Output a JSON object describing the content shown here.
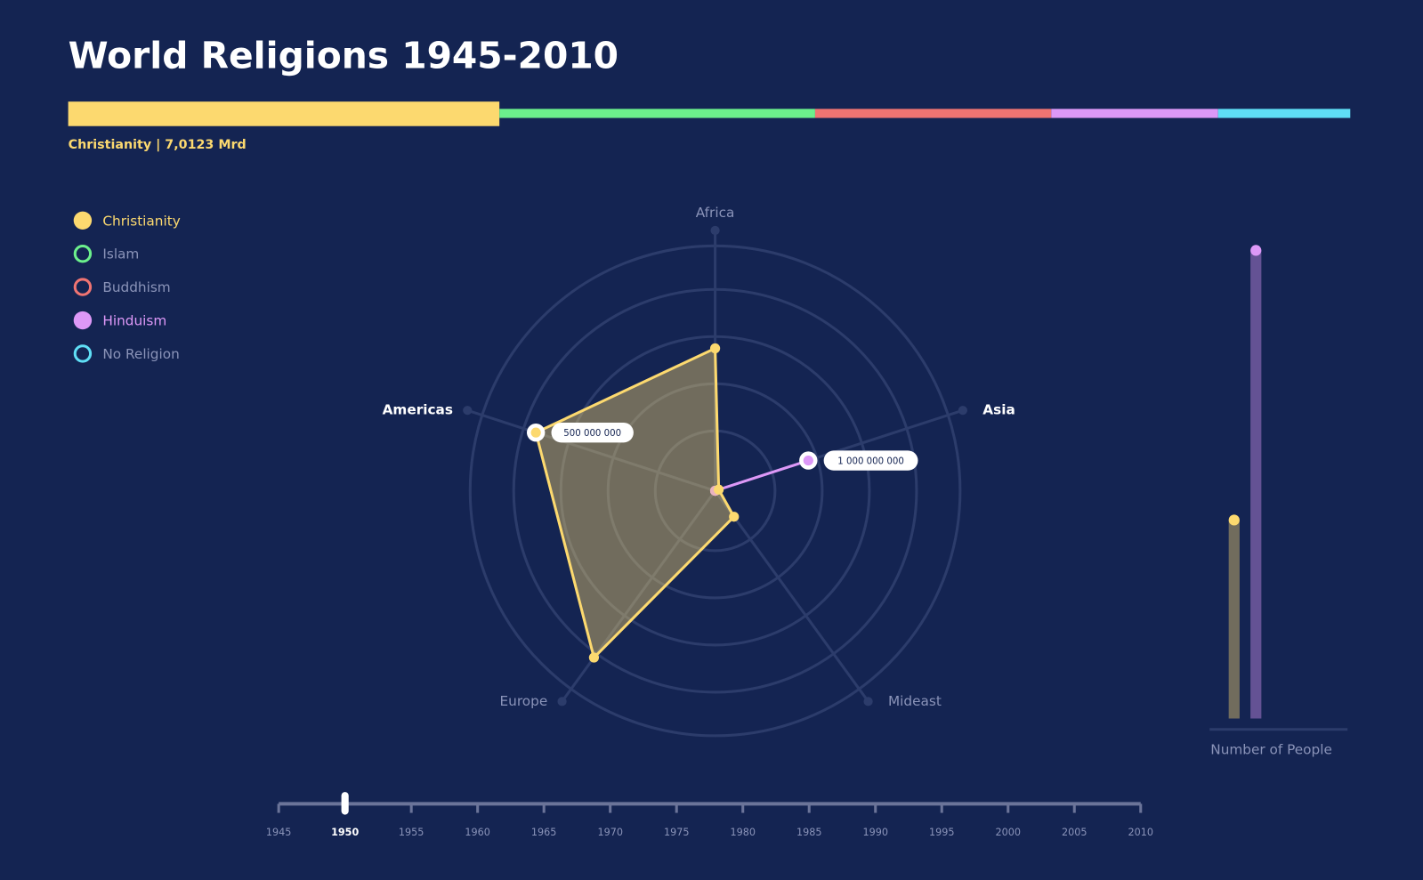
{
  "title": "World Religions 1945-2010",
  "share_bar": {
    "label": "Christianity | 7,0123 Mrd",
    "values": [
      33.6,
      24.6,
      18.4,
      13.0,
      10.3
    ],
    "selected": 0
  },
  "legend": [
    {
      "name": "Christianity",
      "color": "#fcd96f",
      "active": true
    },
    {
      "name": "Islam",
      "color": "#6cf08c",
      "active": false
    },
    {
      "name": "Buddhism",
      "color": "#f07472",
      "active": false
    },
    {
      "name": "Hinduism",
      "color": "#dd98f7",
      "active": true
    },
    {
      "name": "No Religion",
      "color": "#5fdef5",
      "active": false
    }
  ],
  "chart_data": [
    {
      "type": "radar",
      "categories": [
        "Africa",
        "Asia",
        "Mideast",
        "Europe",
        "Americas"
      ],
      "series": [
        {
          "name": "Christianity",
          "color": "#fcd96f",
          "rlim": [
            0,
            650000000
          ],
          "values": [
            378000000,
            10000000,
            85000000,
            547000000,
            500000000
          ],
          "value_labels": [
            null,
            null,
            null,
            null,
            "500 000 000"
          ]
        },
        {
          "name": "Hinduism",
          "color": "#dd98f7",
          "rlim": [
            0,
            2500000000
          ],
          "values": [
            0,
            1000000000,
            0,
            0,
            0
          ],
          "value_labels": [
            null,
            "1 000 000 000",
            null,
            null,
            null
          ]
        }
      ]
    },
    {
      "type": "bar",
      "ylabel": "Number of People",
      "values": [
        424000000,
        1000000000
      ],
      "colors": [
        "#fcd96f",
        "#dd98f7"
      ],
      "ylim": [
        0,
        1000000000
      ]
    }
  ],
  "timeline": {
    "xlim": [
      1945,
      2010
    ],
    "xticks": [
      1945,
      1950,
      1955,
      1960,
      1965,
      1970,
      1975,
      1980,
      1985,
      1990,
      1995,
      2000,
      2005,
      2010
    ],
    "selected": 1950
  }
}
